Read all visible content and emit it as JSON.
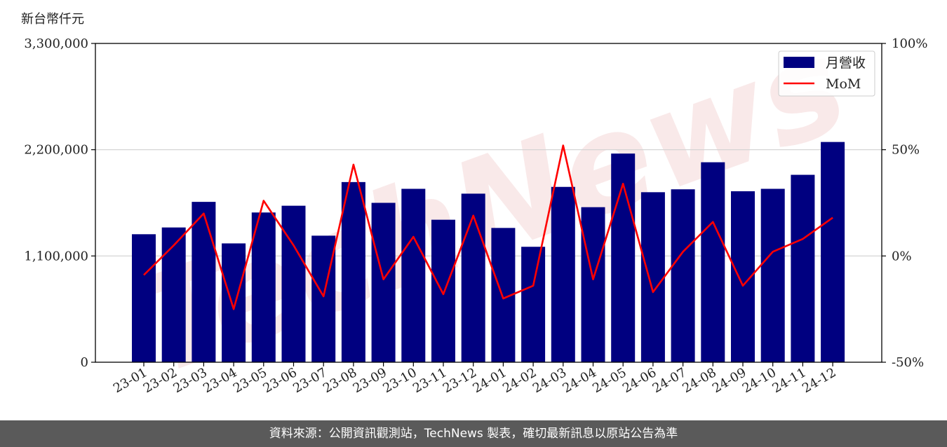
{
  "chart_data": {
    "type": "bar",
    "unit_label": "新台幣仟元",
    "categories": [
      "23-01",
      "23-02",
      "23-03",
      "23-04",
      "23-05",
      "23-06",
      "23-07",
      "23-08",
      "23-09",
      "23-10",
      "23-11",
      "23-12",
      "24-01",
      "24-02",
      "24-03",
      "24-04",
      "24-05",
      "24-06",
      "24-07",
      "24-08",
      "24-09",
      "24-10",
      "24-11",
      "24-12"
    ],
    "series": [
      {
        "name": "月營收",
        "type": "bar",
        "axis": "left",
        "color": "#000080",
        "values": [
          1325000,
          1395000,
          1660000,
          1230000,
          1550000,
          1620000,
          1310000,
          1865000,
          1650000,
          1795000,
          1475000,
          1745000,
          1390000,
          1195000,
          1815000,
          1605000,
          2160000,
          1760000,
          1790000,
          2070000,
          1770000,
          1795000,
          1940000,
          2280000
        ]
      },
      {
        "name": "MoM",
        "type": "line",
        "axis": "right",
        "color": "#ff0000",
        "values": [
          -9,
          5,
          20,
          -25,
          26,
          5,
          -19,
          43,
          -11,
          9,
          -18,
          19,
          -20,
          -14,
          52,
          -11,
          34,
          -17,
          2,
          16,
          -14,
          2,
          8,
          18
        ]
      }
    ],
    "y_left": {
      "ticks": [
        "0",
        "1,100,000",
        "2,200,000",
        "3,300,000"
      ],
      "ylim": [
        0,
        3300000
      ]
    },
    "y_right": {
      "ticks": [
        "-50%",
        "0%",
        "50%",
        "100%"
      ],
      "ylim": [
        -50,
        100
      ]
    },
    "legend": {
      "position": "top-right"
    },
    "grid": "horizontal"
  },
  "watermark": "TechNews",
  "footer": {
    "text": "資料來源：公開資訊觀測站，TechNews 製表，確切最新訊息以原站公告為準"
  }
}
